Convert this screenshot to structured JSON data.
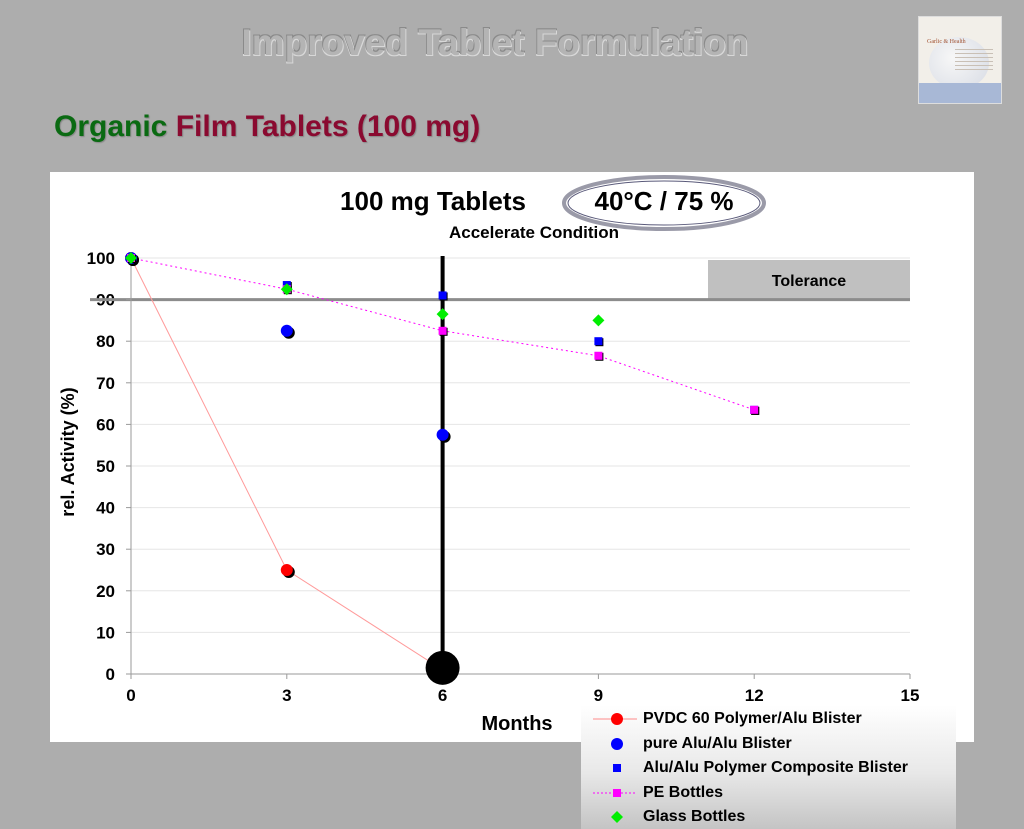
{
  "slide": {
    "title": "Improved Tablet Formulation",
    "subtitle_part1": "Organic",
    "subtitle_part2": "Film Tablets (100 mg)",
    "logo_text": "Garlic & Health"
  },
  "colors": {
    "background": "#adadad",
    "subtitle_green": "#0a6a12",
    "subtitle_red": "#8a0a30"
  },
  "chart_data": {
    "type": "scatter",
    "title": "100 mg Tablets",
    "title_condition": "40°C / 75 %",
    "subtitle": "Accelerate Condition",
    "xlabel": "Months",
    "ylabel": "rel. Activity (%)",
    "xlim": [
      0,
      15
    ],
    "ylim": [
      0,
      100
    ],
    "x_ticks": [
      0,
      3,
      6,
      9,
      12,
      15
    ],
    "y_ticks": [
      0,
      10,
      20,
      30,
      40,
      50,
      60,
      70,
      80,
      90,
      100
    ],
    "grid": "horizontal",
    "tolerance_line": 90,
    "tolerance_label": "Tolerance",
    "vertical_marker_x": 6,
    "legend_position": "bottom-right",
    "series": [
      {
        "name": "PVDC 60 Polymer/Alu Blister",
        "color": "#ff0000",
        "marker": "circle",
        "line": "solid",
        "x": [
          0,
          3,
          6
        ],
        "y": [
          100,
          25,
          1
        ]
      },
      {
        "name": "pure Alu/Alu Blister",
        "color": "#0000ff",
        "marker": "circle",
        "line": "none",
        "x": [
          0,
          3,
          6
        ],
        "y": [
          100,
          82.5,
          57.5
        ]
      },
      {
        "name": "Alu/Alu Polymer Composite Blister",
        "color": "#0000ff",
        "marker": "square",
        "line": "none",
        "x": [
          0,
          3,
          6,
          9,
          12
        ],
        "y": [
          100,
          93.5,
          91,
          80,
          63.5
        ]
      },
      {
        "name": "PE Bottles",
        "color": "#ff00ff",
        "marker": "square",
        "line": "dotted",
        "x": [
          0,
          3,
          6,
          9,
          12
        ],
        "y": [
          100,
          92.5,
          82.5,
          76.5,
          63.5
        ]
      },
      {
        "name": "Glass Bottles",
        "color": "#00ee00",
        "marker": "diamond",
        "line": "none",
        "x": [
          0,
          3,
          6,
          9
        ],
        "y": [
          100,
          92.5,
          86.5,
          85
        ]
      }
    ]
  }
}
